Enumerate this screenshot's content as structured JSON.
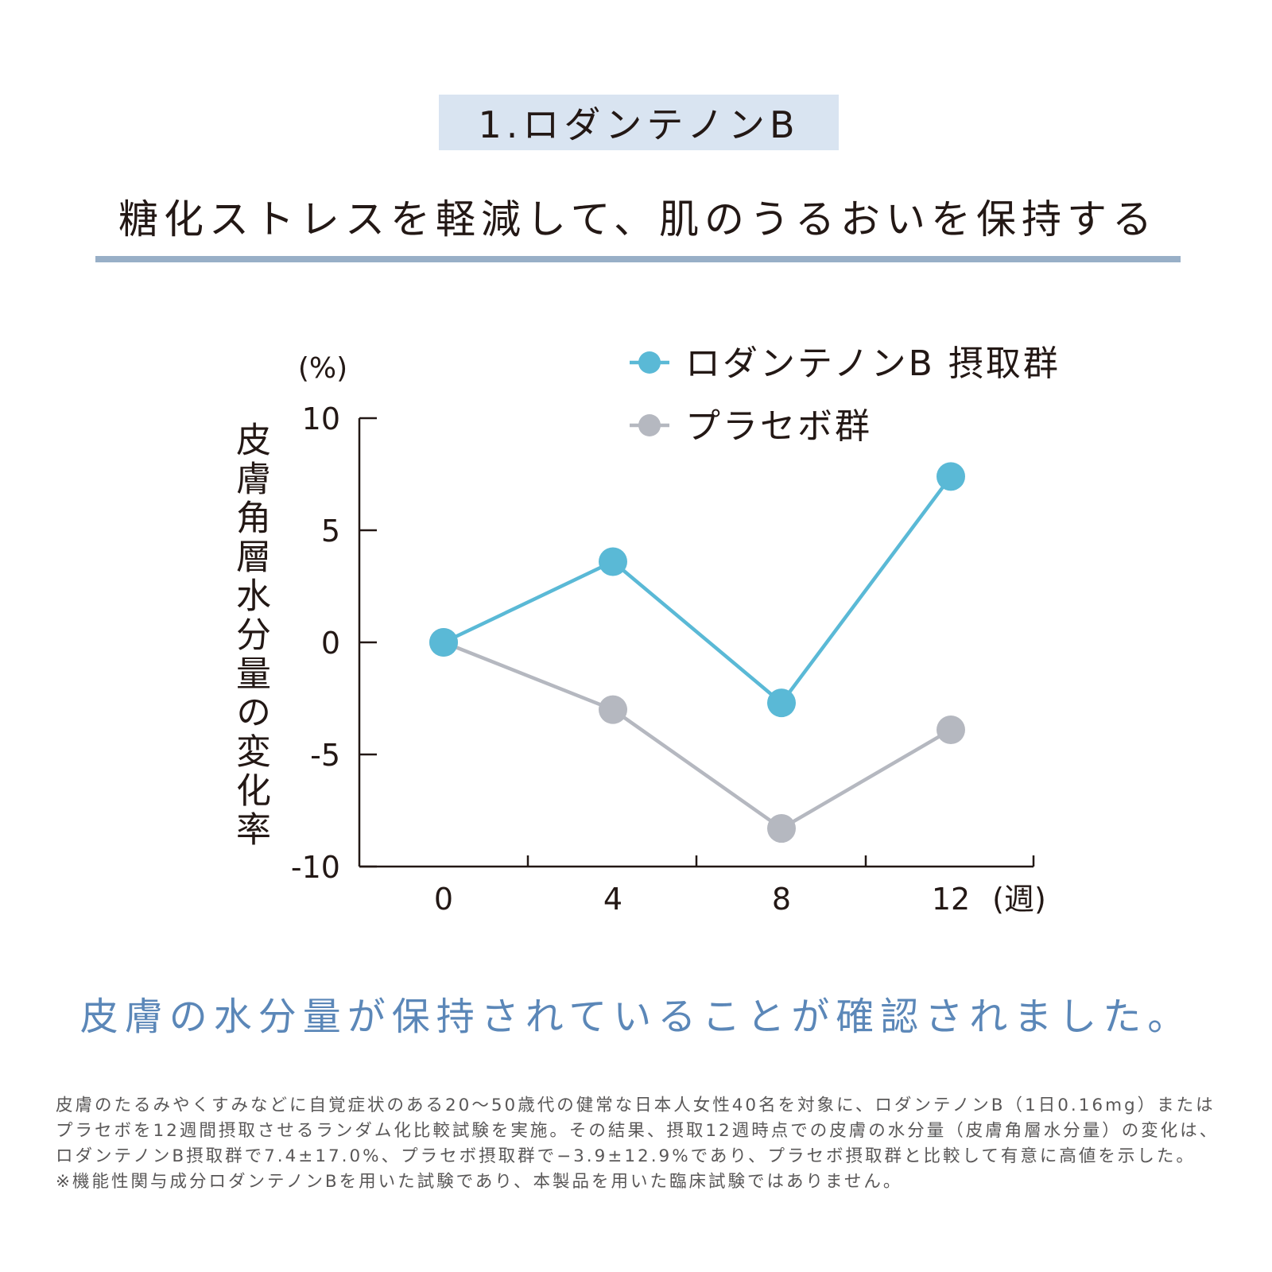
{
  "header": {
    "section_tag": "1.ロダンテノンB",
    "headline": "糖化ストレスを軽減して、肌のうるおいを保持する"
  },
  "chart_data": {
    "type": "line",
    "x": [
      0,
      4,
      8,
      12
    ],
    "categories": [
      "0",
      "4",
      "8",
      "12"
    ],
    "series": [
      {
        "name": "ロダンテノンB 摂取群",
        "values": [
          0,
          3.6,
          -2.7,
          7.4
        ],
        "color": "#5ab9d6"
      },
      {
        "name": "プラセボ群",
        "values": [
          0,
          -3.0,
          -8.3,
          -3.9
        ],
        "color": "#b5b8c0"
      }
    ],
    "ylabel": "皮膚角層水分量の変化率",
    "yunit": "(%)",
    "xunit": "(週)",
    "ylim": [
      -10,
      10
    ],
    "yticks": [
      10,
      5,
      0,
      -5,
      -10
    ],
    "ytick_labels": [
      "10",
      "5",
      "0",
      "-5",
      "-10"
    ],
    "legend_position": "top-right",
    "grid": false
  },
  "conclusion": "皮膚の水分量が保持されていることが確認されました。",
  "footnote": {
    "body": "皮膚のたるみやくすみなどに自覚症状のある20〜50歳代の健常な日本人女性40名を対象に、ロダンテノンB（1日0.16mg）またはプラセボを12週間摂取させるランダム化比較試験を実施。その結果、摂取12週時点での皮膚の水分量（皮膚角層水分量）の変化は、ロダンテノンB摂取群で7.4±17.0%、プラセボ摂取群で−3.9±12.9%であり、プラセボ摂取群と比較して有意に高値を示した。",
    "note": "※機能性関与成分ロダンテノンBを用いた試験であり、本製品を用いた臨床試験ではありません。"
  },
  "colors": {
    "tag_background": "#d9e4f1",
    "rule": "#98afc7",
    "conclusion_text": "#5b87b8",
    "axis": "#231815"
  }
}
